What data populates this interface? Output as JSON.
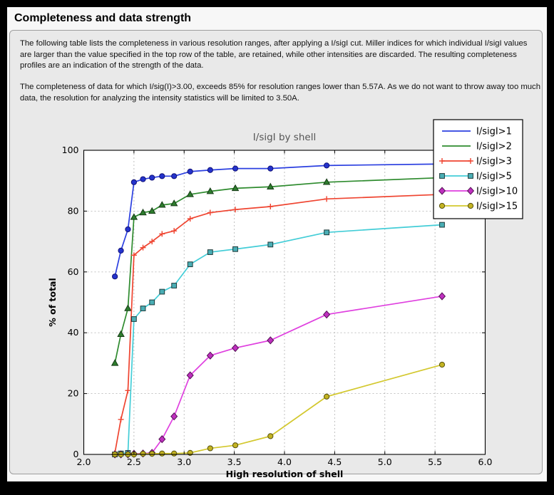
{
  "page": {
    "title": "Completeness and data strength",
    "paragraph1": "The following table lists the completeness in various resolution ranges, after applying a I/sigI cut. Miller indices for which individual I/sigI values are larger than the value specified in the top row of the table, are retained, while other intensities are discarded. The resulting completeness profiles are an indication of the strength of the data.",
    "paragraph2": "The completeness of data for which I/sig(I)>3.00, exceeds  85% for resolution ranges lower than 5.57A. As we do not want to throw away too much data, the resolution for analyzing the intensity statistics will be limited to 3.50A."
  },
  "chart_data": {
    "type": "line",
    "title": "I/sigI by shell",
    "xlabel": "High resolution of shell",
    "ylabel": "% of total",
    "xlim": [
      2.0,
      6.0
    ],
    "ylim": [
      0,
      100
    ],
    "xticks": [
      2.0,
      2.5,
      3.0,
      3.5,
      4.0,
      4.5,
      5.0,
      5.5,
      6.0
    ],
    "yticks": [
      0,
      20,
      40,
      60,
      80,
      100
    ],
    "grid": true,
    "legend_position": "upper right",
    "x": [
      2.31,
      2.37,
      2.44,
      2.5,
      2.59,
      2.68,
      2.78,
      2.9,
      3.06,
      3.26,
      3.51,
      3.86,
      4.42,
      5.57
    ],
    "series": [
      {
        "name": "I/sigI>1",
        "line_color": "#2b3fe0",
        "marker": "circle",
        "marker_fill": "#2433cc",
        "marker_edge": "#101078",
        "legend_markers": false,
        "values": [
          58.5,
          67,
          74,
          89.5,
          90.5,
          91,
          91.5,
          91.5,
          93,
          93.5,
          94,
          94,
          95,
          95.5
        ]
      },
      {
        "name": "I/sigI>2",
        "line_color": "#2e8b2e",
        "marker": "triangle",
        "marker_fill": "#2e7d2e",
        "marker_edge": "#143914",
        "legend_markers": false,
        "values": [
          30,
          39.5,
          48,
          78,
          79.5,
          80,
          82,
          82.5,
          85.5,
          86.5,
          87.5,
          88,
          89.5,
          91
        ]
      },
      {
        "name": "I/sigI>3",
        "line_color": "#ef4430",
        "marker": "plus",
        "marker_fill": "none",
        "marker_edge": "#ef4430",
        "legend_markers": true,
        "values": [
          0.5,
          11.5,
          21,
          65.5,
          68,
          70,
          72.5,
          73.5,
          77.5,
          79.5,
          80.5,
          81.5,
          84,
          85.5
        ]
      },
      {
        "name": "I/sigI>5",
        "line_color": "#43cdd7",
        "marker": "square",
        "marker_fill": "#4aaeb5",
        "marker_edge": "#1e3a3a",
        "legend_markers": true,
        "values": [
          0,
          0.3,
          0.5,
          44.5,
          48,
          50,
          53.5,
          55.5,
          62.5,
          66.5,
          67.5,
          69,
          73,
          75.5
        ]
      },
      {
        "name": "I/sigI>10",
        "line_color": "#df3fdf",
        "marker": "diamond",
        "marker_fill": "#bf2fbf",
        "marker_edge": "#531253",
        "legend_markers": true,
        "values": [
          0,
          0,
          0,
          0.2,
          0.3,
          0.5,
          5,
          12.5,
          26,
          32.5,
          35,
          37.5,
          46,
          52
        ]
      },
      {
        "name": "I/sigI>15",
        "line_color": "#d3c82e",
        "marker": "circle",
        "marker_fill": "#c3b322",
        "marker_edge": "#56510e",
        "legend_markers": true,
        "values": [
          0,
          0,
          0,
          0,
          0.2,
          0.2,
          0.3,
          0.3,
          0.5,
          2,
          3,
          6,
          19,
          29.5
        ]
      }
    ]
  }
}
